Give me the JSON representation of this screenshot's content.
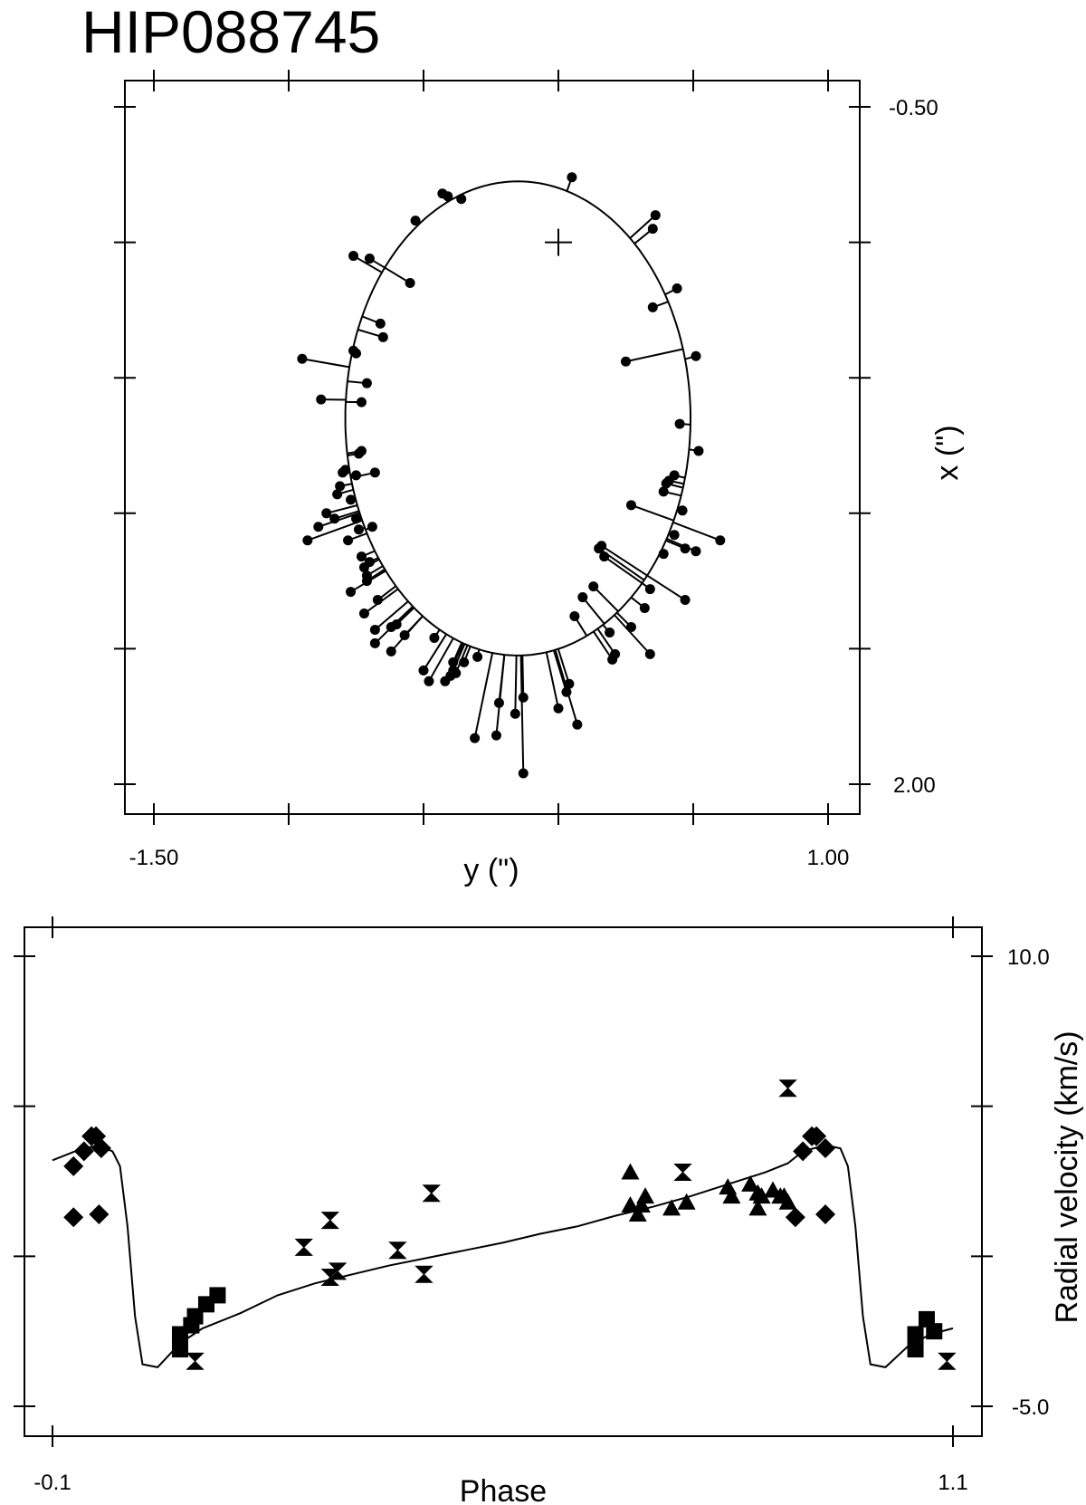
{
  "title": "HIP088745",
  "chart_data": [
    {
      "type": "scatter",
      "name": "orbit",
      "xlabel": "y (\")",
      "ylabel": "x (\")",
      "xlim": [
        -1.5,
        1.0
      ],
      "ylim": [
        -0.5,
        2.0
      ],
      "y_inverted": true,
      "x_tick_labels": [
        "-1.50",
        "1.00"
      ],
      "y_tick_labels": [
        "-0.50",
        "2.00"
      ],
      "x_ticks": [
        -1.5,
        -1.0,
        -0.5,
        0.0,
        0.5,
        1.0
      ],
      "y_ticks": [
        -0.5,
        0.0,
        0.5,
        1.0,
        1.5,
        2.0
      ],
      "grid": false,
      "primary_marker": [
        0.0,
        0.0
      ],
      "orbit": {
        "center": [
          -0.15,
          0.65
        ],
        "semi_axis_y": 0.64,
        "semi_axis_x": 0.875
      },
      "points": [
        [
          0.05,
          -0.24
        ],
        [
          0.36,
          -0.1
        ],
        [
          0.35,
          -0.05
        ],
        [
          -0.43,
          -0.18
        ],
        [
          -0.41,
          -0.17
        ],
        [
          -0.36,
          -0.16
        ],
        [
          -0.53,
          -0.08
        ],
        [
          -0.7,
          0.06
        ],
        [
          -0.76,
          0.05
        ],
        [
          -0.55,
          0.15
        ],
        [
          -0.66,
          0.3
        ],
        [
          -0.65,
          0.35
        ],
        [
          -0.76,
          0.4
        ],
        [
          -0.75,
          0.41
        ],
        [
          -0.95,
          0.43
        ],
        [
          -0.71,
          0.52
        ],
        [
          -0.88,
          0.58
        ],
        [
          -0.73,
          0.59
        ],
        [
          0.35,
          0.24
        ],
        [
          0.44,
          0.17
        ],
        [
          0.51,
          0.42
        ],
        [
          0.25,
          0.44
        ],
        [
          0.45,
          0.67
        ],
        [
          0.52,
          0.77
        ],
        [
          0.43,
          0.86
        ],
        [
          0.41,
          0.88
        ],
        [
          0.4,
          0.89
        ],
        [
          0.39,
          0.92
        ],
        [
          0.43,
          1.08
        ],
        [
          0.27,
          0.97
        ],
        [
          0.47,
          1.13
        ],
        [
          0.39,
          1.15
        ],
        [
          0.34,
          1.28
        ],
        [
          0.16,
          1.12
        ],
        [
          0.15,
          1.13
        ],
        [
          0.17,
          1.16
        ],
        [
          0.32,
          1.35
        ],
        [
          0.13,
          1.27
        ],
        [
          0.09,
          1.31
        ],
        [
          0.06,
          1.38
        ],
        [
          -0.73,
          0.77
        ],
        [
          -0.74,
          0.78
        ],
        [
          -0.79,
          0.84
        ],
        [
          -0.8,
          0.85
        ],
        [
          -0.77,
          0.95
        ],
        [
          -0.81,
          0.9
        ],
        [
          -0.86,
          1.0
        ],
        [
          -0.75,
          1.02
        ],
        [
          -0.74,
          1.06
        ],
        [
          -0.93,
          1.1
        ],
        [
          -0.89,
          1.05
        ],
        [
          -0.78,
          1.1
        ],
        [
          -0.73,
          1.16
        ],
        [
          -0.72,
          1.2
        ],
        [
          -0.71,
          1.23
        ],
        [
          -0.71,
          1.25
        ],
        [
          -0.77,
          1.29
        ],
        [
          -0.67,
          1.32
        ],
        [
          -0.72,
          1.37
        ],
        [
          -0.68,
          1.43
        ],
        [
          -0.62,
          1.42
        ],
        [
          -0.68,
          1.48
        ],
        [
          -0.57,
          1.45
        ],
        [
          -0.62,
          1.51
        ],
        [
          -0.46,
          1.46
        ],
        [
          -0.5,
          1.58
        ],
        [
          -0.48,
          1.62
        ],
        [
          -0.38,
          1.59
        ],
        [
          -0.39,
          1.58
        ],
        [
          -0.39,
          1.55
        ],
        [
          -0.3,
          1.53
        ],
        [
          -0.22,
          1.7
        ],
        [
          -0.13,
          1.68
        ],
        [
          -0.16,
          1.74
        ],
        [
          -0.23,
          1.82
        ],
        [
          -0.31,
          1.83
        ],
        [
          0.0,
          1.72
        ],
        [
          0.07,
          1.78
        ],
        [
          0.03,
          1.66
        ],
        [
          0.19,
          1.44
        ],
        [
          0.21,
          1.52
        ],
        [
          0.27,
          1.42
        ],
        [
          0.34,
          1.52
        ],
        [
          0.51,
          1.14
        ],
        [
          0.6,
          1.1
        ],
        [
          0.46,
          0.99
        ],
        [
          0.47,
          1.32
        ],
        [
          -0.83,
          1.02
        ],
        [
          -0.68,
          0.85
        ],
        [
          -0.75,
          0.86
        ],
        [
          -0.82,
          0.93
        ],
        [
          -0.69,
          1.05
        ],
        [
          -0.7,
          1.18
        ],
        [
          -0.6,
          1.41
        ],
        [
          -0.4,
          1.6
        ],
        [
          -0.42,
          1.62
        ],
        [
          -0.35,
          1.55
        ],
        [
          -0.13,
          1.96
        ],
        [
          0.2,
          1.54
        ],
        [
          0.04,
          1.63
        ]
      ]
    },
    {
      "type": "scatter",
      "name": "radial-velocity",
      "xlabel": "Phase",
      "ylabel": "Radial velocity (km/s)",
      "xlim": [
        -0.1,
        1.1
      ],
      "ylim": [
        -5.0,
        10.0
      ],
      "x_tick_labels": [
        "-0.1",
        "1.1"
      ],
      "y_tick_labels": [
        "10.0",
        "-5.0"
      ],
      "x_ticks": [
        -0.1,
        1.1
      ],
      "y_ticks": [
        -5.0,
        0.0,
        5.0,
        10.0
      ],
      "grid": false,
      "curve": [
        [
          -0.1,
          3.2
        ],
        [
          -0.07,
          3.5
        ],
        [
          -0.04,
          3.7
        ],
        [
          -0.02,
          3.5
        ],
        [
          -0.01,
          3.0
        ],
        [
          0.0,
          1.0
        ],
        [
          0.01,
          -2.0
        ],
        [
          0.02,
          -3.6
        ],
        [
          0.04,
          -3.7
        ],
        [
          0.07,
          -2.9
        ],
        [
          0.1,
          -2.4
        ],
        [
          0.15,
          -1.9
        ],
        [
          0.2,
          -1.3
        ],
        [
          0.25,
          -0.9
        ],
        [
          0.3,
          -0.6
        ],
        [
          0.35,
          -0.3
        ],
        [
          0.4,
          -0.05
        ],
        [
          0.45,
          0.2
        ],
        [
          0.5,
          0.45
        ],
        [
          0.55,
          0.75
        ],
        [
          0.6,
          1.0
        ],
        [
          0.65,
          1.35
        ],
        [
          0.7,
          1.65
        ],
        [
          0.75,
          2.0
        ],
        [
          0.8,
          2.4
        ],
        [
          0.85,
          2.8
        ],
        [
          0.88,
          3.1
        ],
        [
          0.9,
          3.5
        ],
        [
          0.93,
          3.7
        ],
        [
          0.95,
          3.6
        ],
        [
          0.96,
          3.0
        ],
        [
          0.97,
          1.0
        ],
        [
          0.98,
          -2.0
        ],
        [
          0.99,
          -3.6
        ],
        [
          1.01,
          -3.7
        ],
        [
          1.04,
          -3.0
        ],
        [
          1.07,
          -2.6
        ],
        [
          1.1,
          -2.4
        ]
      ],
      "series": [
        {
          "marker": "diamond",
          "points": [
            [
              -0.072,
              3.0
            ],
            [
              -0.058,
              3.5
            ],
            [
              -0.048,
              4.0
            ],
            [
              -0.042,
              4.0
            ],
            [
              -0.035,
              3.6
            ],
            [
              -0.072,
              1.3
            ],
            [
              -0.038,
              1.4
            ],
            [
              0.9,
              3.5
            ],
            [
              0.912,
              4.0
            ],
            [
              0.918,
              4.0
            ],
            [
              0.93,
              3.6
            ],
            [
              0.89,
              1.3
            ],
            [
              0.93,
              1.4
            ]
          ]
        },
        {
          "marker": "square",
          "points": [
            [
              0.07,
              -2.6
            ],
            [
              0.07,
              -3.1
            ],
            [
              0.085,
              -2.3
            ],
            [
              0.09,
              -2.0
            ],
            [
              0.105,
              -1.6
            ],
            [
              0.12,
              -1.3
            ],
            [
              1.05,
              -2.6
            ],
            [
              1.05,
              -3.1
            ],
            [
              1.065,
              -2.1
            ],
            [
              1.075,
              -2.5
            ]
          ]
        },
        {
          "marker": "hourglass",
          "points": [
            [
              0.09,
              -3.5
            ],
            [
              0.235,
              0.3
            ],
            [
              0.27,
              1.2
            ],
            [
              0.27,
              -0.7
            ],
            [
              0.28,
              -0.5
            ],
            [
              0.36,
              0.2
            ],
            [
              0.395,
              -0.6
            ],
            [
              0.405,
              2.1
            ],
            [
              0.74,
              2.8
            ],
            [
              0.88,
              5.6
            ],
            [
              1.092,
              -3.5
            ]
          ]
        },
        {
          "marker": "triangle",
          "points": [
            [
              0.67,
              2.8
            ],
            [
              0.67,
              1.7
            ],
            [
              0.68,
              1.4
            ],
            [
              0.685,
              1.7
            ],
            [
              0.69,
              2.0
            ],
            [
              0.725,
              1.6
            ],
            [
              0.745,
              1.8
            ],
            [
              0.8,
              2.3
            ],
            [
              0.805,
              2.0
            ],
            [
              0.83,
              2.4
            ],
            [
              0.84,
              2.1
            ],
            [
              0.84,
              1.6
            ],
            [
              0.845,
              2.0
            ],
            [
              0.86,
              2.2
            ],
            [
              0.87,
              2.0
            ],
            [
              0.875,
              2.0
            ],
            [
              0.88,
              1.8
            ]
          ]
        }
      ]
    }
  ]
}
